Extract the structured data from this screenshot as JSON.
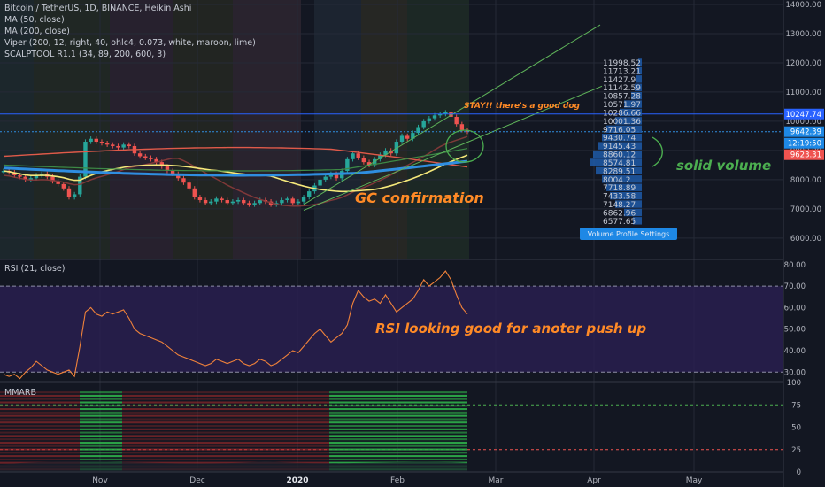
{
  "header": {
    "symbol_line": "Bitcoin / TetherUS, 1D, BINANCE, Heikin Ashi",
    "indicators": [
      "MA (50, close)",
      "MA (200, close)",
      "Viper (200, 12, right, 40, ohlc4, 0.073, white, maroon, lime)",
      "SCALPTOOL R1.1 (34, 89, 200, 600, 3)"
    ]
  },
  "colors": {
    "background": "#131722",
    "grid": "#252a37",
    "axis_text": "#b2b5be",
    "bull": "#26a69a",
    "bear": "#ef5350",
    "ma50": "#f5e87a",
    "ma200": "#e05a4a",
    "rsi_line": "#f0823a",
    "rsi_band": "#2a1f52",
    "annotation_orange": "#ff8a26",
    "annotation_green": "#4caf50",
    "volume_profile": "#1e5aa8"
  },
  "chart_data": [
    {
      "type": "candlestick",
      "panel": "price",
      "x_ticks": [
        "Nov",
        "Dec",
        "2020",
        "Feb",
        "Mar",
        "Apr",
        "May"
      ],
      "y_ticks": [
        6000,
        7000,
        8000,
        9000,
        10000,
        11000,
        12000,
        13000,
        14000
      ],
      "ylim": [
        5300,
        14150
      ],
      "price_tags": [
        {
          "text": "10247.74",
          "value": 10247.74,
          "color": "#2962ff"
        },
        {
          "text": "9642.39",
          "value": 9642.39,
          "color": "#1e88e5"
        },
        {
          "text": "12:19:50",
          "value": 9440,
          "color": "#1e88e5"
        },
        {
          "text": "9623.31",
          "value": 9623.31,
          "color": "#ef5350"
        }
      ],
      "series_close": [
        8300,
        8250,
        8150,
        8100,
        8000,
        8050,
        8150,
        8200,
        8100,
        7950,
        7850,
        7700,
        7400,
        7500,
        8100,
        9300,
        9400,
        9300,
        9250,
        9200,
        9150,
        9100,
        9200,
        9150,
        8900,
        8800,
        8750,
        8700,
        8600,
        8450,
        8300,
        8200,
        8050,
        7900,
        7700,
        7400,
        7300,
        7200,
        7250,
        7350,
        7300,
        7200,
        7250,
        7300,
        7200,
        7150,
        7200,
        7300,
        7250,
        7150,
        7200,
        7300,
        7350,
        7200,
        7250,
        7400,
        7600,
        7800,
        8000,
        8100,
        8200,
        8050,
        8300,
        8700,
        8900,
        8750,
        8600,
        8500,
        8700,
        8850,
        9000,
        8900,
        9300,
        9500,
        9400,
        9600,
        9800,
        10000,
        10100,
        10200,
        10250,
        10300,
        10150,
        9900,
        9700,
        9642
      ],
      "volume_profile": {
        "levels": [
          "11998.52",
          "11713.21",
          "11427.9",
          "11142.59",
          "10857.28",
          "10571.97",
          "10286.66",
          "10001.36",
          "9716.05",
          "9430.74",
          "9145.43",
          "8860.12",
          "8574.81",
          "8289.51",
          "8004.2",
          "7718.89",
          "7433.58",
          "7148.27",
          "6862.96",
          "6577.65"
        ],
        "volume": [
          0.04,
          0.05,
          0.06,
          0.08,
          0.12,
          0.2,
          0.25,
          0.3,
          0.4,
          0.45,
          0.5,
          0.55,
          0.58,
          0.52,
          0.45,
          0.4,
          0.36,
          0.3,
          0.2,
          0.1
        ],
        "button_label": "Volume Profile Settings"
      }
    },
    {
      "type": "line",
      "panel": "rsi",
      "label": "RSI (21, close)",
      "y_ticks": [
        30,
        40,
        50,
        60,
        70,
        80
      ],
      "ylim": [
        26,
        82
      ],
      "band": [
        30,
        70
      ],
      "values": [
        29,
        28,
        29,
        27,
        30,
        32,
        35,
        33,
        31,
        30,
        29,
        30,
        31,
        28,
        42,
        58,
        60,
        57,
        56,
        58,
        57,
        58,
        59,
        55,
        50,
        48,
        47,
        46,
        45,
        44,
        42,
        40,
        38,
        37,
        36,
        35,
        34,
        33,
        34,
        36,
        35,
        34,
        35,
        36,
        34,
        33,
        34,
        36,
        35,
        33,
        34,
        36,
        38,
        40,
        39,
        42,
        45,
        48,
        50,
        47,
        44,
        46,
        48,
        52,
        62,
        68,
        65,
        63,
        64,
        62,
        66,
        62,
        58,
        60,
        62,
        64,
        68,
        73,
        70,
        72,
        74,
        77,
        73,
        66,
        60,
        57
      ]
    },
    {
      "type": "heatmap",
      "panel": "mmarb",
      "label": "MMARB",
      "y_ticks": [
        0,
        25,
        50,
        75,
        100
      ],
      "ylim": [
        0,
        100
      ]
    }
  ],
  "annotations": {
    "stay": "STAY!! there's a good dog",
    "gc": "GC confirmation",
    "volume": "solid volume",
    "rsi": "RSI looking good for anoter push up"
  }
}
